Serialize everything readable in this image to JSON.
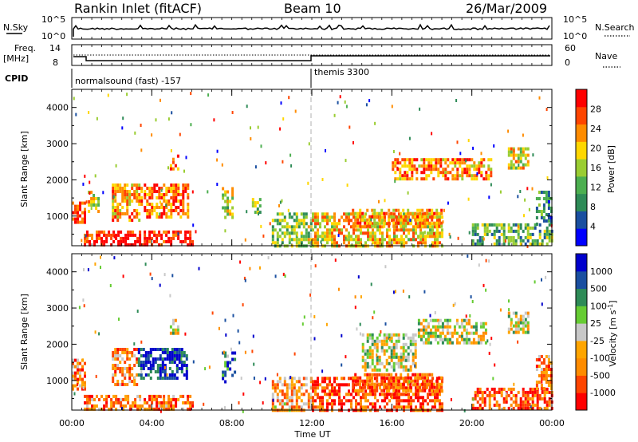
{
  "header": {
    "station": "Rankin Inlet (fitACF)",
    "beam": "Beam 10",
    "date": "26/Mar/2009"
  },
  "status_panels": {
    "nsky_label": "N.Sky",
    "nsky_ticks": [
      "10^5",
      "10^0"
    ],
    "nsearch_label": "N.Search",
    "nsearch_ticks": [
      "10^5",
      "10^0"
    ],
    "freq_label_line1": "Freq.",
    "freq_label_line2": "[MHz]",
    "freq_ticks": [
      "14",
      "8"
    ],
    "nave_label": "Nave",
    "nave_ticks": [
      "60",
      "0"
    ],
    "cpid_label": "CPID",
    "cpid_segments": [
      {
        "name": "normalsound (fast) -157",
        "start_hour": 0,
        "end_hour": 12
      },
      {
        "name": "themis 3300",
        "start_hour": 12,
        "end_hour": 24
      }
    ]
  },
  "chart_data": [
    {
      "type": "heatmap",
      "title": "",
      "ylabel": "Slant Range [km]",
      "xlabel": "",
      "x_range_hours": [
        0,
        24
      ],
      "ylim": [
        180,
        4500
      ],
      "y_ticks": [
        1000,
        2000,
        3000,
        4000
      ],
      "colorbar_label": "Power [dB]",
      "colorbar_ticks": [
        "28",
        "24",
        "20",
        "16",
        "12",
        "8",
        "4"
      ],
      "colorbar_colors": [
        "#0000ff",
        "#1a4fa0",
        "#2e8b57",
        "#4caf50",
        "#9acd32",
        "#ffd700",
        "#ff8c00",
        "#ff4500",
        "#ff0000"
      ],
      "echo_regions": [
        {
          "t0": 0.0,
          "t1": 0.6,
          "r0": 800,
          "r1": 1400,
          "level": 0.85
        },
        {
          "t0": 0.6,
          "t1": 6.0,
          "r0": 200,
          "r1": 600,
          "level": 0.95
        },
        {
          "t0": 0.8,
          "t1": 1.3,
          "r0": 1100,
          "r1": 1700,
          "level": 0.6
        },
        {
          "t0": 2.0,
          "t1": 3.5,
          "r0": 900,
          "r1": 1900,
          "level": 0.7
        },
        {
          "t0": 3.6,
          "t1": 5.8,
          "r0": 1000,
          "r1": 1900,
          "level": 0.8
        },
        {
          "t0": 4.9,
          "t1": 5.3,
          "r0": 2300,
          "r1": 2700,
          "level": 0.75
        },
        {
          "t0": 7.5,
          "t1": 8.0,
          "r0": 1000,
          "r1": 1800,
          "level": 0.55
        },
        {
          "t0": 9.0,
          "t1": 9.4,
          "r0": 1100,
          "r1": 1500,
          "level": 0.45
        },
        {
          "t0": 10.0,
          "t1": 12.0,
          "r0": 200,
          "r1": 1100,
          "level": 0.45
        },
        {
          "t0": 12.0,
          "t1": 18.5,
          "r0": 200,
          "r1": 1100,
          "level": 0.65
        },
        {
          "t0": 14.0,
          "t1": 18.5,
          "r0": 700,
          "r1": 1200,
          "level": 0.7
        },
        {
          "t0": 16.0,
          "t1": 21.0,
          "r0": 2000,
          "r1": 2600,
          "level": 0.75
        },
        {
          "t0": 20.0,
          "t1": 24.0,
          "r0": 200,
          "r1": 800,
          "level": 0.4
        },
        {
          "t0": 21.8,
          "t1": 22.8,
          "r0": 2300,
          "r1": 2900,
          "level": 0.6
        },
        {
          "t0": 23.2,
          "t1": 24.0,
          "r0": 800,
          "r1": 1700,
          "level": 0.3
        }
      ]
    },
    {
      "type": "heatmap",
      "title": "",
      "ylabel": "Slant Range [km]",
      "xlabel": "Time UT",
      "x_range_hours": [
        0,
        24
      ],
      "x_ticks": [
        "00:00",
        "04:00",
        "08:00",
        "12:00",
        "16:00",
        "20:00",
        "00:00"
      ],
      "ylim": [
        180,
        4500
      ],
      "y_ticks": [
        1000,
        2000,
        3000,
        4000
      ],
      "colorbar_label": "Velocity [m s",
      "colorbar_label_exp": "-1",
      "colorbar_label_end": "]",
      "colorbar_ticks": [
        "1000",
        "500",
        "100",
        "25",
        "-25",
        "-100",
        "-500",
        "-1000"
      ],
      "colorbar_colors": [
        "#ff0000",
        "#ff4500",
        "#ff8c00",
        "#ffa500",
        "#c8c8c8",
        "#66cc33",
        "#2e8b57",
        "#1a4fa0",
        "#0000cc"
      ],
      "echo_regions": [
        {
          "t0": 0.0,
          "t1": 0.6,
          "r0": 800,
          "r1": 1600,
          "level": 0.3
        },
        {
          "t0": 0.6,
          "t1": 6.0,
          "r0": 200,
          "r1": 600,
          "level": 0.25
        },
        {
          "t0": 2.0,
          "t1": 3.2,
          "r0": 900,
          "r1": 1900,
          "level": 0.3
        },
        {
          "t0": 3.3,
          "t1": 5.8,
          "r0": 1100,
          "r1": 1900,
          "level": 0.9
        },
        {
          "t0": 4.9,
          "t1": 5.3,
          "r0": 2300,
          "r1": 2700,
          "level": 0.5
        },
        {
          "t0": 7.5,
          "t1": 8.1,
          "r0": 1000,
          "r1": 1800,
          "level": 0.75
        },
        {
          "t0": 10.0,
          "t1": 12.0,
          "r0": 200,
          "r1": 1100,
          "level": 0.35
        },
        {
          "t0": 12.0,
          "t1": 18.5,
          "r0": 200,
          "r1": 1100,
          "level": 0.15
        },
        {
          "t0": 14.0,
          "t1": 18.5,
          "r0": 700,
          "r1": 1200,
          "level": 0.2
        },
        {
          "t0": 14.5,
          "t1": 17.2,
          "r0": 1300,
          "r1": 2300,
          "level": 0.5
        },
        {
          "t0": 17.3,
          "t1": 20.7,
          "r0": 2000,
          "r1": 2700,
          "level": 0.5
        },
        {
          "t0": 20.0,
          "t1": 24.0,
          "r0": 200,
          "r1": 800,
          "level": 0.15
        },
        {
          "t0": 21.8,
          "t1": 22.8,
          "r0": 2300,
          "r1": 2900,
          "level": 0.5
        },
        {
          "t0": 23.2,
          "t1": 24.0,
          "r0": 800,
          "r1": 1700,
          "level": 0.25
        }
      ]
    }
  ]
}
